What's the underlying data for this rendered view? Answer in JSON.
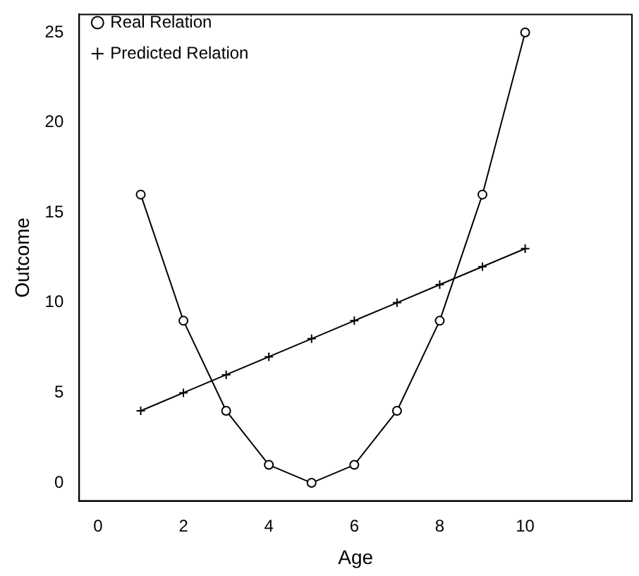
{
  "chart_data": {
    "type": "line",
    "xlabel": "Age",
    "ylabel": "Outcome",
    "x": [
      1,
      2,
      3,
      4,
      5,
      6,
      7,
      8,
      9,
      10
    ],
    "series": [
      {
        "name": "Real Relation",
        "color": "#000000",
        "values": [
          16,
          9,
          4,
          1,
          0,
          1,
          4,
          9,
          16,
          25
        ],
        "marker": "circle"
      },
      {
        "name": "Predicted Relation",
        "color": "#000000",
        "values": [
          4,
          5,
          6,
          7,
          8,
          9,
          10,
          11,
          12,
          13
        ],
        "marker": "cross"
      }
    ],
    "xlim": [
      -0.44,
      12.5
    ],
    "xticks": [
      0,
      2,
      4,
      6,
      8,
      10
    ],
    "ylim": [
      -1,
      26
    ],
    "yticks": [
      0,
      5,
      10,
      15,
      20,
      25
    ],
    "grid": false,
    "legend": "top left",
    "line_style": "solid"
  }
}
